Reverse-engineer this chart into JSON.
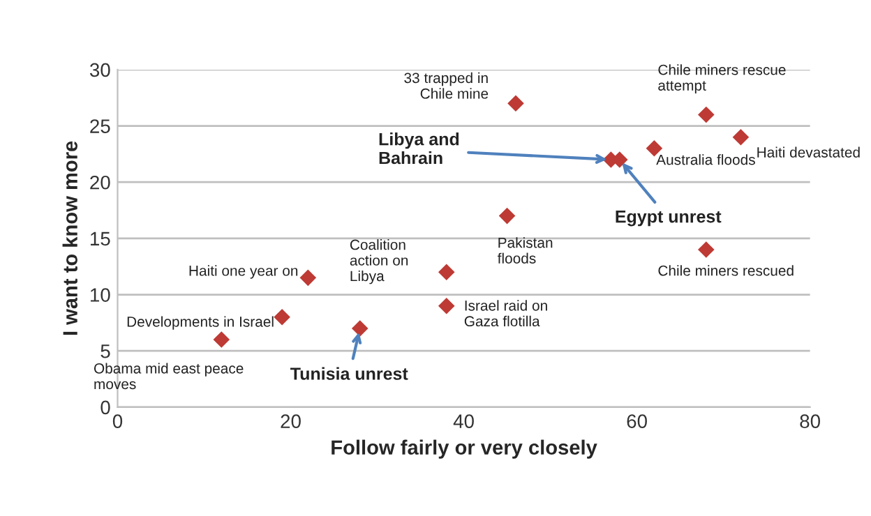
{
  "chart_data": {
    "type": "scatter",
    "xlabel": "Follow fairly or very closely",
    "ylabel": "I want to know more",
    "x": [
      12,
      19,
      22,
      28,
      38,
      38,
      45,
      46,
      57,
      58,
      62,
      68,
      72,
      68
    ],
    "series": [
      {
        "color": "#be3a34",
        "values": [
          6,
          8,
          11.5,
          7,
          12,
          9,
          17,
          27,
          22,
          22,
          23,
          26,
          24,
          14
        ]
      }
    ],
    "xlim": [
      0,
      80
    ],
    "xticks": [
      0,
      20,
      40,
      60,
      80
    ],
    "ylim": [
      0,
      30
    ],
    "yticks": [
      0,
      5,
      10,
      15,
      20,
      25,
      30
    ],
    "grid": "y",
    "marker": "diamond",
    "legend": false,
    "annotations": [
      {
        "text": "Obama mid east peace\nmoves",
        "x": 12,
        "y": 6
      },
      {
        "text": "Developments in Israel",
        "x": 19,
        "y": 8
      },
      {
        "text": "Haiti one year on",
        "x": 22,
        "y": 11.5
      },
      {
        "text": "Tunisia unrest",
        "x": 28,
        "y": 7
      },
      {
        "text": "Coalition\naction on\nLibya",
        "x": 38,
        "y": 12
      },
      {
        "text": "Israel raid on\nGaza flotilla",
        "x": 38,
        "y": 9
      },
      {
        "text": "Pakistan\nfloods",
        "x": 45,
        "y": 17
      },
      {
        "text": "33 trapped in\nChile mine",
        "x": 46,
        "y": 27
      },
      {
        "text": "Libya and\nBahrain",
        "x": 57,
        "y": 22
      },
      {
        "text": "Egypt unrest",
        "x": 58,
        "y": 22
      },
      {
        "text": "Australia floods",
        "x": 62,
        "y": 23
      },
      {
        "text": "Chile miners rescue\nattempt",
        "x": 68,
        "y": 26
      },
      {
        "text": "Haiti devastated",
        "x": 72,
        "y": 24
      },
      {
        "text": "Chile miners rescued",
        "x": 68,
        "y": 14
      }
    ]
  }
}
